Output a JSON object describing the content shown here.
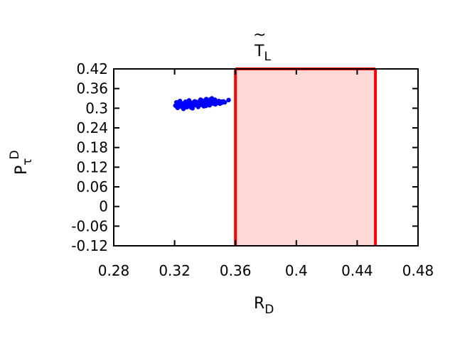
{
  "chart_data": {
    "type": "scatter",
    "title": {
      "main": "T",
      "accent": "~",
      "sub": "L"
    },
    "xlabel": {
      "main": "R",
      "sub": "D"
    },
    "ylabel": {
      "main": "P",
      "sub": "τ",
      "sup": "D"
    },
    "xlim": [
      0.28,
      0.48
    ],
    "ylim": [
      -0.12,
      0.42
    ],
    "xticks": [
      "0.28",
      "0.32",
      "0.36",
      "0.4",
      "0.44",
      "0.48"
    ],
    "yticks": [
      "-0.12",
      "-0.06",
      "0",
      "0.06",
      "0.12",
      "0.18",
      "0.24",
      "0.3",
      "0.36",
      "0.42"
    ],
    "grid": false,
    "region": {
      "x": [
        0.36,
        0.452
      ],
      "fill": "#ffd8d8",
      "stroke": "#ff0000"
    },
    "series": [
      {
        "color": "#0000ff",
        "points": [
          [
            0.3205,
            0.308
          ],
          [
            0.3212,
            0.318
          ],
          [
            0.322,
            0.301
          ],
          [
            0.3228,
            0.312
          ],
          [
            0.3235,
            0.322
          ],
          [
            0.3242,
            0.305
          ],
          [
            0.325,
            0.315
          ],
          [
            0.3258,
            0.298
          ],
          [
            0.3265,
            0.31
          ],
          [
            0.3272,
            0.32
          ],
          [
            0.328,
            0.303
          ],
          [
            0.3288,
            0.313
          ],
          [
            0.3295,
            0.324
          ],
          [
            0.3302,
            0.307
          ],
          [
            0.331,
            0.317
          ],
          [
            0.3318,
            0.3
          ],
          [
            0.3325,
            0.311
          ],
          [
            0.3332,
            0.321
          ],
          [
            0.334,
            0.309
          ],
          [
            0.3348,
            0.319
          ],
          [
            0.3355,
            0.304
          ],
          [
            0.3362,
            0.314
          ],
          [
            0.337,
            0.326
          ],
          [
            0.3378,
            0.31
          ],
          [
            0.3385,
            0.32
          ],
          [
            0.3392,
            0.306
          ],
          [
            0.34,
            0.316
          ],
          [
            0.3408,
            0.328
          ],
          [
            0.3415,
            0.312
          ],
          [
            0.3422,
            0.322
          ],
          [
            0.343,
            0.309
          ],
          [
            0.3438,
            0.318
          ],
          [
            0.3445,
            0.33
          ],
          [
            0.3452,
            0.314
          ],
          [
            0.346,
            0.324
          ],
          [
            0.3468,
            0.312
          ],
          [
            0.3475,
            0.32
          ],
          [
            0.3482,
            0.316
          ],
          [
            0.349,
            0.322
          ],
          [
            0.3498,
            0.314
          ],
          [
            0.3505,
            0.32
          ],
          [
            0.3512,
            0.317
          ],
          [
            0.352,
            0.321
          ],
          [
            0.353,
            0.318
          ],
          [
            0.3555,
            0.325
          ],
          [
            0.3215,
            0.304
          ],
          [
            0.3238,
            0.316
          ],
          [
            0.3262,
            0.304
          ],
          [
            0.3285,
            0.318
          ],
          [
            0.3308,
            0.302
          ],
          [
            0.333,
            0.315
          ],
          [
            0.3352,
            0.311
          ],
          [
            0.3375,
            0.317
          ],
          [
            0.3398,
            0.311
          ],
          [
            0.342,
            0.315
          ],
          [
            0.3442,
            0.321
          ],
          [
            0.3465,
            0.326
          ],
          [
            0.338,
            0.324
          ],
          [
            0.3405,
            0.307
          ],
          [
            0.3435,
            0.327
          ]
        ]
      }
    ]
  }
}
